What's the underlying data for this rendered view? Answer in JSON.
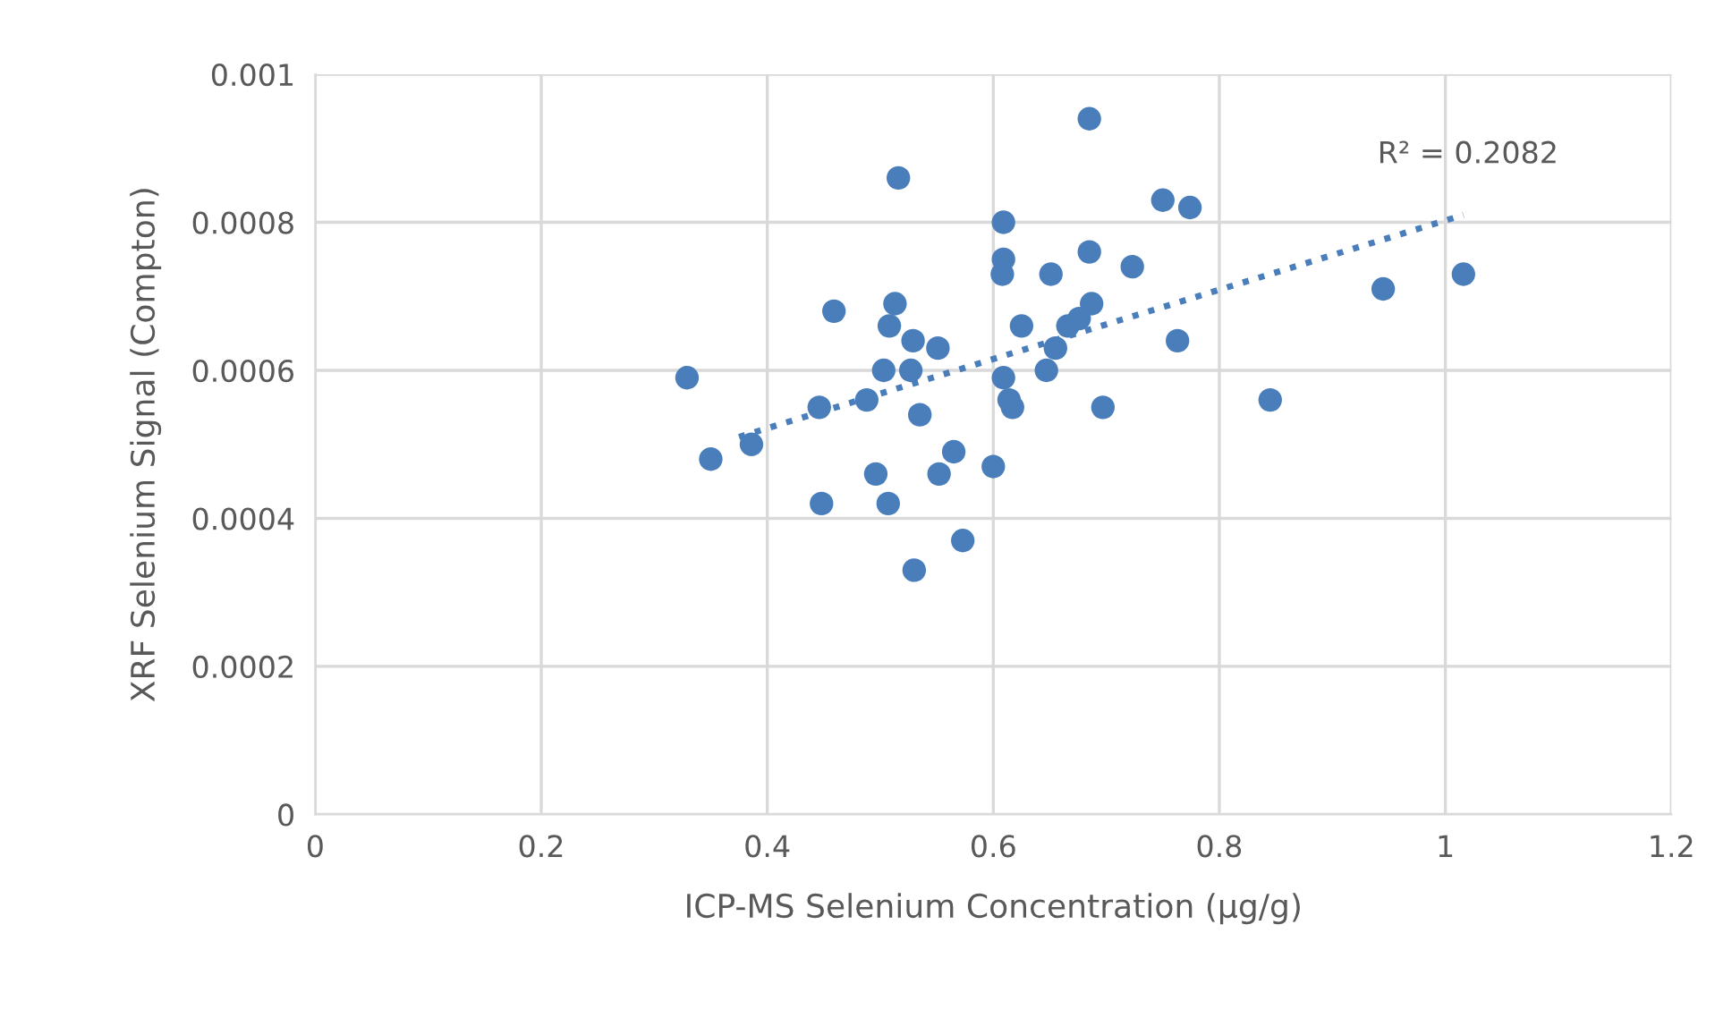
{
  "chart_data": {
    "type": "scatter",
    "xlabel": "ICP-MS Selenium Concentration (µg/g)",
    "ylabel": "XRF Selenium Signal (Compton)",
    "xlim": [
      0,
      1.2
    ],
    "xticks": [
      0,
      0.2,
      0.4,
      0.6,
      0.8,
      1,
      1.2
    ],
    "ylim": [
      0,
      0.001
    ],
    "yticks": [
      0,
      0.0002,
      0.0004,
      0.0006,
      0.0008,
      0.001
    ],
    "grid": true,
    "marker": "circle",
    "legend": false,
    "annotations": [
      "R² = 0.2082"
    ],
    "series": [
      {
        "color": "#4a7ebb",
        "x": [
          0.329,
          0.35,
          0.386,
          0.448,
          0.446,
          0.459,
          0.488,
          0.496,
          0.503,
          0.507,
          0.508,
          0.513,
          0.516,
          0.527,
          0.529,
          0.53,
          0.535,
          0.551,
          0.552,
          0.565,
          0.573,
          0.6,
          0.608,
          0.609,
          0.609,
          0.609,
          0.614,
          0.617,
          0.625,
          0.651,
          0.647,
          0.655,
          0.666,
          0.676,
          0.685,
          0.685,
          0.687,
          0.697,
          0.723,
          0.75,
          0.774,
          0.763,
          0.845,
          0.945,
          1.016
        ],
        "values": [
          0.00059,
          0.00048,
          0.0005,
          0.00042,
          0.00055,
          0.00068,
          0.00056,
          0.00046,
          0.0006,
          0.00042,
          0.00066,
          0.00069,
          0.00086,
          0.0006,
          0.00064,
          0.00033,
          0.00054,
          0.00063,
          0.00046,
          0.00049,
          0.00037,
          0.00047,
          0.00073,
          0.0008,
          0.00075,
          0.00059,
          0.00056,
          0.00055,
          0.00066,
          0.00073,
          0.0006,
          0.00063,
          0.00066,
          0.00067,
          0.00094,
          0.00076,
          0.00069,
          0.00055,
          0.00074,
          0.00083,
          0.00082,
          0.00064,
          0.00056,
          0.00071,
          0.00073
        ]
      },
      {
        "type": "line",
        "color": "#4a7ebb",
        "line_style": "dotted",
        "marker": "none",
        "x": [
          0.375,
          1.016
        ],
        "values": [
          0.00051,
          0.00081
        ]
      }
    ]
  }
}
